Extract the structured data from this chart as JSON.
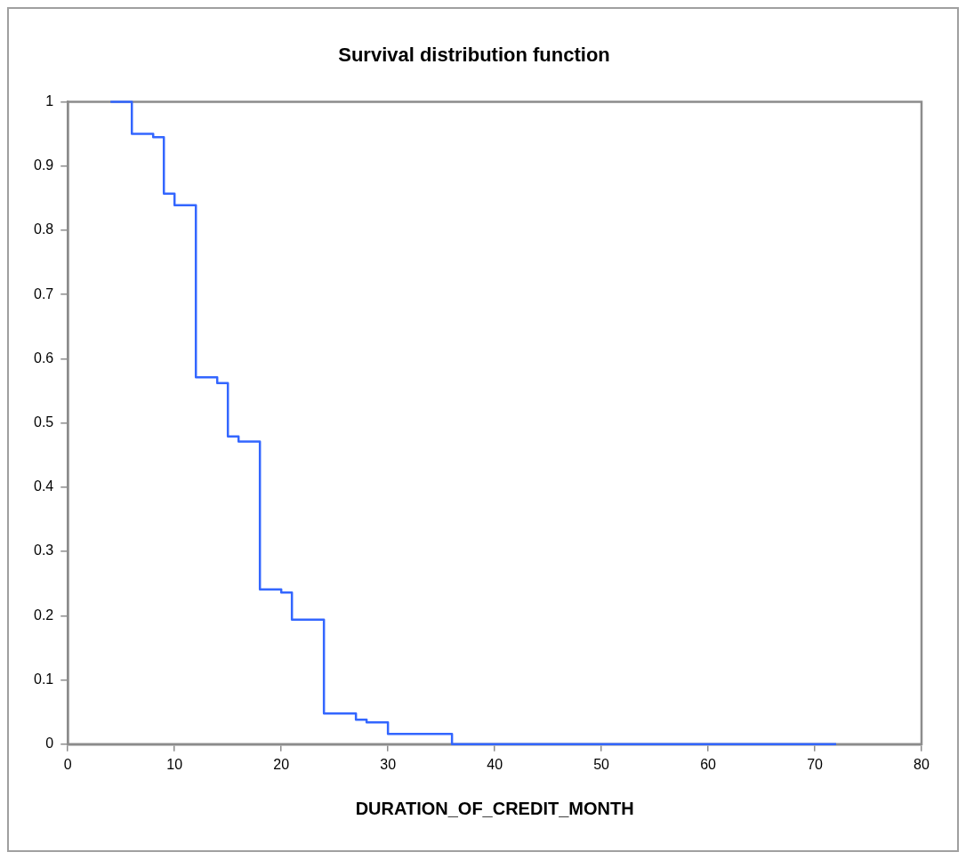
{
  "chart_data": {
    "type": "step",
    "title": "Survival distribution function",
    "xlabel": "DURATION_OF_CREDIT_MONTH",
    "x": [
      4,
      6,
      8,
      9,
      10,
      12,
      14,
      15,
      16,
      18,
      20,
      21,
      24,
      27,
      28,
      30,
      36,
      72
    ],
    "series": [
      {
        "color": "#3366ff",
        "values": [
          1,
          0.95,
          0.945,
          0.857,
          0.839,
          0.571,
          0.562,
          0.479,
          0.471,
          0.241,
          0.236,
          0.194,
          0.048,
          0.038,
          0.034,
          0.016,
          0,
          0
        ]
      }
    ],
    "xlim": [
      0,
      80
    ],
    "xticks": [
      0,
      10,
      20,
      30,
      40,
      50,
      60,
      70,
      80
    ],
    "ylim": [
      0,
      1
    ],
    "yticks": [
      0,
      0.1,
      0.2,
      0.3,
      0.4,
      0.5,
      0.6,
      0.7,
      0.8,
      0.9,
      1
    ],
    "grid": false,
    "legend": false,
    "marker": "none"
  }
}
